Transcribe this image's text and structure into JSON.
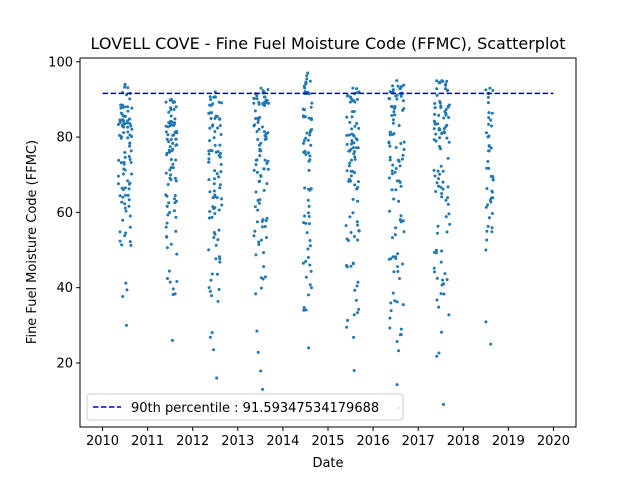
{
  "chart_data": {
    "type": "scatter",
    "title": "LOVELL COVE - Fine Fuel Moisture Code (FFMC), Scatterplot",
    "xlabel": "Date",
    "ylabel": "Fine Fuel Moisture Code (FFMC)",
    "xlim": [
      2009.5,
      2020.5
    ],
    "ylim": [
      3,
      101
    ],
    "xticks": [
      "2010",
      "2011",
      "2012",
      "2013",
      "2014",
      "2015",
      "2016",
      "2017",
      "2018",
      "2019",
      "2020"
    ],
    "yticks": [
      20,
      40,
      60,
      80,
      100
    ],
    "grid": false,
    "legend": {
      "placement": "lower-left",
      "entries": [
        "90th percentile : 91.59347534179688"
      ]
    },
    "percentile_line": {
      "name": "90th percentile : 91.59347534179688",
      "value": 91.59347534179688,
      "x_start": 2010,
      "x_end": 2020,
      "color": "#0000cc",
      "style": "dashed"
    },
    "series": [
      {
        "color": "#1f77b4",
        "seasons": [
          {
            "year": 2010,
            "start": 2010.35,
            "end": 2010.65,
            "count": 95,
            "min": 30,
            "max": 94
          },
          {
            "year": 2011,
            "start": 2011.4,
            "end": 2011.65,
            "count": 85,
            "min": 26,
            "max": 90
          },
          {
            "year": 2012,
            "start": 2012.35,
            "end": 2012.65,
            "count": 90,
            "min": 16,
            "max": 92
          },
          {
            "year": 2013,
            "start": 2013.35,
            "end": 2013.68,
            "count": 95,
            "min": 13,
            "max": 93
          },
          {
            "year": 2014,
            "start": 2014.45,
            "end": 2014.65,
            "count": 70,
            "min": 24,
            "max": 97
          },
          {
            "year": 2015,
            "start": 2015.4,
            "end": 2015.7,
            "count": 90,
            "min": 18,
            "max": 93
          },
          {
            "year": 2016,
            "start": 2016.35,
            "end": 2016.7,
            "count": 100,
            "min": 8,
            "max": 95
          },
          {
            "year": 2017,
            "start": 2017.35,
            "end": 2017.7,
            "count": 100,
            "min": 9,
            "max": 95
          },
          {
            "year": 2018,
            "start": 2018.5,
            "end": 2018.68,
            "count": 45,
            "min": 25,
            "max": 93
          }
        ]
      }
    ]
  }
}
